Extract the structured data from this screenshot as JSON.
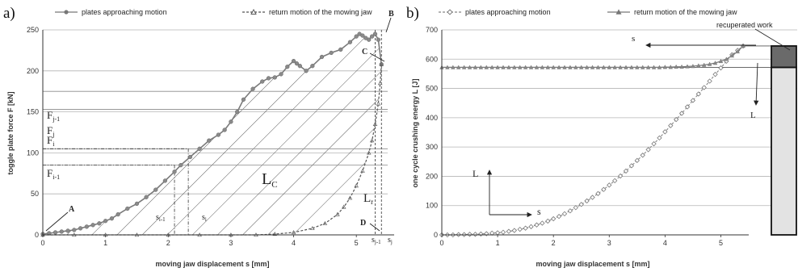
{
  "chart_data": [
    {
      "panel_label": "a)",
      "type": "line",
      "xlabel": "moving jaw displacement s [mm]",
      "ylabel": "toggle plate force F [kN]",
      "xlim": [
        0,
        5.5
      ],
      "ylim": [
        0,
        250
      ],
      "xticks": [
        0,
        1,
        2,
        3,
        4,
        5
      ],
      "yticks": [
        0,
        50,
        100,
        150,
        200,
        250
      ],
      "grid": "horizontal",
      "legend": "top",
      "series": [
        {
          "name": "plates approaching motion",
          "marker": "circle",
          "color": "#7a7a7a",
          "x": [
            0,
            0.1,
            0.2,
            0.3,
            0.4,
            0.5,
            0.6,
            0.7,
            0.8,
            0.9,
            1.0,
            1.1,
            1.2,
            1.35,
            1.5,
            1.65,
            1.8,
            1.95,
            2.1,
            2.2,
            2.35,
            2.5,
            2.65,
            2.8,
            2.9,
            3.0,
            3.1,
            3.2,
            3.35,
            3.5,
            3.6,
            3.7,
            3.8,
            3.9,
            4.0,
            4.05,
            4.1,
            4.2,
            4.3,
            4.45,
            4.6,
            4.75,
            4.9,
            5.0,
            5.05,
            5.1,
            5.15,
            5.2,
            5.25,
            5.3,
            5.35,
            5.4
          ],
          "y": [
            1,
            2,
            3,
            4,
            5,
            6,
            8,
            10,
            12,
            14,
            17,
            20,
            25,
            32,
            38,
            46,
            55,
            66,
            77,
            85,
            95,
            105,
            115,
            122,
            128,
            138,
            150,
            165,
            178,
            187,
            191,
            192,
            196,
            205,
            212,
            209,
            206,
            200,
            206,
            217,
            222,
            226,
            235,
            242,
            245,
            243,
            240,
            238,
            242,
            245,
            238,
            208
          ]
        },
        {
          "name": "return motion of the mowing jaw",
          "marker": "triangle",
          "color": "#555555",
          "x": [
            5.4,
            5.38,
            5.35,
            5.3,
            5.25,
            5.2,
            5.1,
            5.0,
            4.9,
            4.8,
            4.7,
            4.5,
            4.3,
            4.0,
            3.7,
            3.4,
            3.0,
            2.5,
            2.0,
            1.5,
            1.0,
            0.5,
            0.0
          ],
          "y": [
            208,
            185,
            160,
            135,
            115,
            100,
            78,
            60,
            45,
            34,
            25,
            14,
            8,
            3,
            1,
            0,
            0,
            0,
            0,
            0,
            0,
            0,
            0
          ]
        }
      ],
      "reference_lines": [
        {
          "label": "Fj",
          "y": 175
        },
        {
          "label": "Fj-1",
          "y": 153
        },
        {
          "label": "Fi",
          "y": 105
        },
        {
          "label": "Fi-1",
          "y": 85
        }
      ],
      "annotations": {
        "A": "A",
        "B": "B",
        "C": "C",
        "D": "D",
        "Lc": "L",
        "Lc_sub": "C",
        "Lr": "L",
        "Lr_sub": "r",
        "si_1": "s",
        "si_1_sub": "i-1",
        "si": "s",
        "si_sub": "i",
        "sj_1": "s",
        "sj_1_sub": "j-1",
        "sj": "s",
        "sj_sub": "j",
        "Fj": "F",
        "Fj_sub": "j",
        "Fj_1": "F",
        "Fj_1_sub": "j-1",
        "Fi": "F",
        "Fi_sub": "i",
        "Fi_1": "F",
        "Fi_1_sub": "i-1"
      }
    },
    {
      "panel_label": "b)",
      "type": "line",
      "xlabel": "moving jaw displacement s [mm]",
      "ylabel": "one cycle crushing energy L [J]",
      "xlim": [
        0,
        5.5
      ],
      "ylim": [
        0,
        700
      ],
      "xticks": [
        0,
        1,
        2,
        3,
        4,
        5
      ],
      "yticks": [
        0,
        100,
        200,
        300,
        400,
        500,
        600,
        700
      ],
      "grid": "horizontal",
      "legend": "top",
      "series": [
        {
          "name": "plates approaching motion",
          "marker": "diamond-open",
          "color": "#888888",
          "x": [
            0,
            0.1,
            0.2,
            0.3,
            0.4,
            0.5,
            0.6,
            0.7,
            0.8,
            0.9,
            1.0,
            1.1,
            1.2,
            1.3,
            1.4,
            1.5,
            1.6,
            1.7,
            1.8,
            1.9,
            2.0,
            2.1,
            2.2,
            2.3,
            2.4,
            2.5,
            2.6,
            2.7,
            2.8,
            2.9,
            3.0,
            3.1,
            3.2,
            3.3,
            3.4,
            3.5,
            3.6,
            3.7,
            3.8,
            3.9,
            4.0,
            4.1,
            4.2,
            4.3,
            4.4,
            4.5,
            4.6,
            4.7,
            4.8,
            4.9,
            5.0,
            5.1,
            5.2,
            5.3,
            5.4
          ],
          "y": [
            0,
            0,
            0,
            1,
            1,
            2,
            2,
            3,
            4,
            6,
            7,
            9,
            12,
            15,
            19,
            23,
            28,
            34,
            40,
            47,
            55,
            63,
            72,
            82,
            93,
            104,
            116,
            128,
            141,
            155,
            170,
            185,
            201,
            218,
            236,
            254,
            272,
            291,
            311,
            331,
            352,
            373,
            394,
            415,
            437,
            459,
            481,
            503,
            525,
            548,
            570,
            593,
            615,
            630,
            645
          ]
        },
        {
          "name": "return motion of the mowing jaw",
          "marker": "triangle",
          "color": "#777777",
          "x": [
            0,
            0.1,
            0.2,
            0.3,
            0.4,
            0.5,
            0.6,
            0.7,
            0.8,
            0.9,
            1.0,
            1.1,
            1.2,
            1.3,
            1.4,
            1.5,
            1.6,
            1.7,
            1.8,
            1.9,
            2.0,
            2.1,
            2.2,
            2.3,
            2.4,
            2.5,
            2.6,
            2.7,
            2.8,
            2.9,
            3.0,
            3.1,
            3.2,
            3.3,
            3.4,
            3.5,
            3.6,
            3.7,
            3.8,
            3.9,
            4.0,
            4.1,
            4.2,
            4.3,
            4.4,
            4.5,
            4.6,
            4.7,
            4.8,
            4.9,
            5.0,
            5.1,
            5.2,
            5.3,
            5.4
          ],
          "y": [
            572,
            572,
            572,
            572,
            572,
            572,
            572,
            572,
            572,
            572,
            572,
            572,
            572,
            572,
            572,
            572,
            572,
            572,
            572,
            572,
            572,
            572,
            572,
            572,
            572,
            572,
            572,
            572,
            572,
            572,
            572,
            572,
            572,
            572,
            572,
            572,
            572,
            572,
            572,
            572,
            573,
            573,
            574,
            574,
            575,
            576,
            578,
            580,
            583,
            587,
            593,
            600,
            612,
            626,
            645
          ]
        }
      ],
      "bar": {
        "label": "recuperated work",
        "total": 645,
        "recuperated": 73,
        "lower": 572
      },
      "annotations": {
        "s_arrow": "s",
        "L_arrow": "L",
        "inset_L": "L",
        "inset_s": "s"
      }
    }
  ]
}
